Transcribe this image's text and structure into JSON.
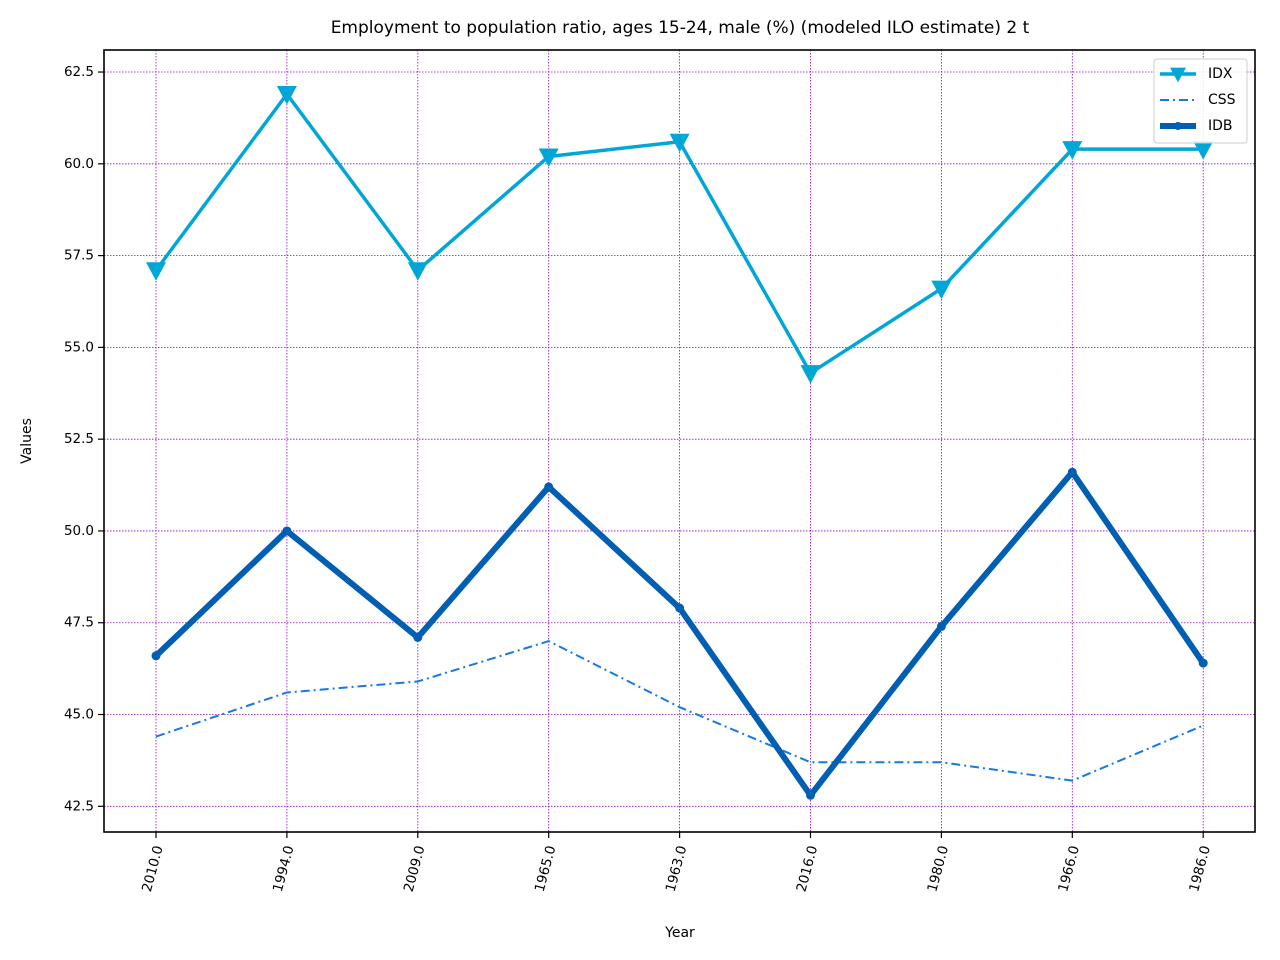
{
  "chart_data": {
    "type": "line",
    "title": "Employment to population ratio, ages 15-24, male (%) (modeled ILO estimate) 2 t",
    "xlabel": "Year",
    "ylabel": "Values",
    "categories": [
      "2010.0",
      "1994.0",
      "2009.0",
      "1965.0",
      "1963.0",
      "2016.0",
      "1980.0",
      "1966.0",
      "1986.0"
    ],
    "ylim": [
      41.8,
      63.1
    ],
    "yticks": [
      42.5,
      45.0,
      47.5,
      50.0,
      52.5,
      55.0,
      57.5,
      60.0,
      62.5
    ],
    "ytick_labels": [
      "42.5",
      "45.0",
      "47.5",
      "50.0",
      "52.5",
      "55.0",
      "57.5",
      "60.0",
      "62.5"
    ],
    "grid": true,
    "grid_color": "#9400d3",
    "legend_position": "top-right",
    "series": [
      {
        "name": "IDX",
        "values": [
          57.1,
          61.9,
          57.1,
          60.2,
          60.6,
          54.3,
          56.6,
          60.4,
          60.4
        ],
        "color": "#00a6d6",
        "style": "solid",
        "marker": "triangle-down"
      },
      {
        "name": "CSS",
        "values": [
          44.4,
          45.6,
          45.9,
          47.0,
          45.2,
          43.7,
          43.7,
          43.2,
          44.7
        ],
        "color": "#1778e6",
        "style": "dashdot",
        "marker": "none"
      },
      {
        "name": "IDB",
        "values": [
          46.6,
          50.0,
          47.1,
          51.2,
          47.9,
          42.8,
          47.4,
          51.6,
          46.4
        ],
        "color": "#005fb3",
        "style": "solid",
        "marker": "circle"
      }
    ]
  }
}
